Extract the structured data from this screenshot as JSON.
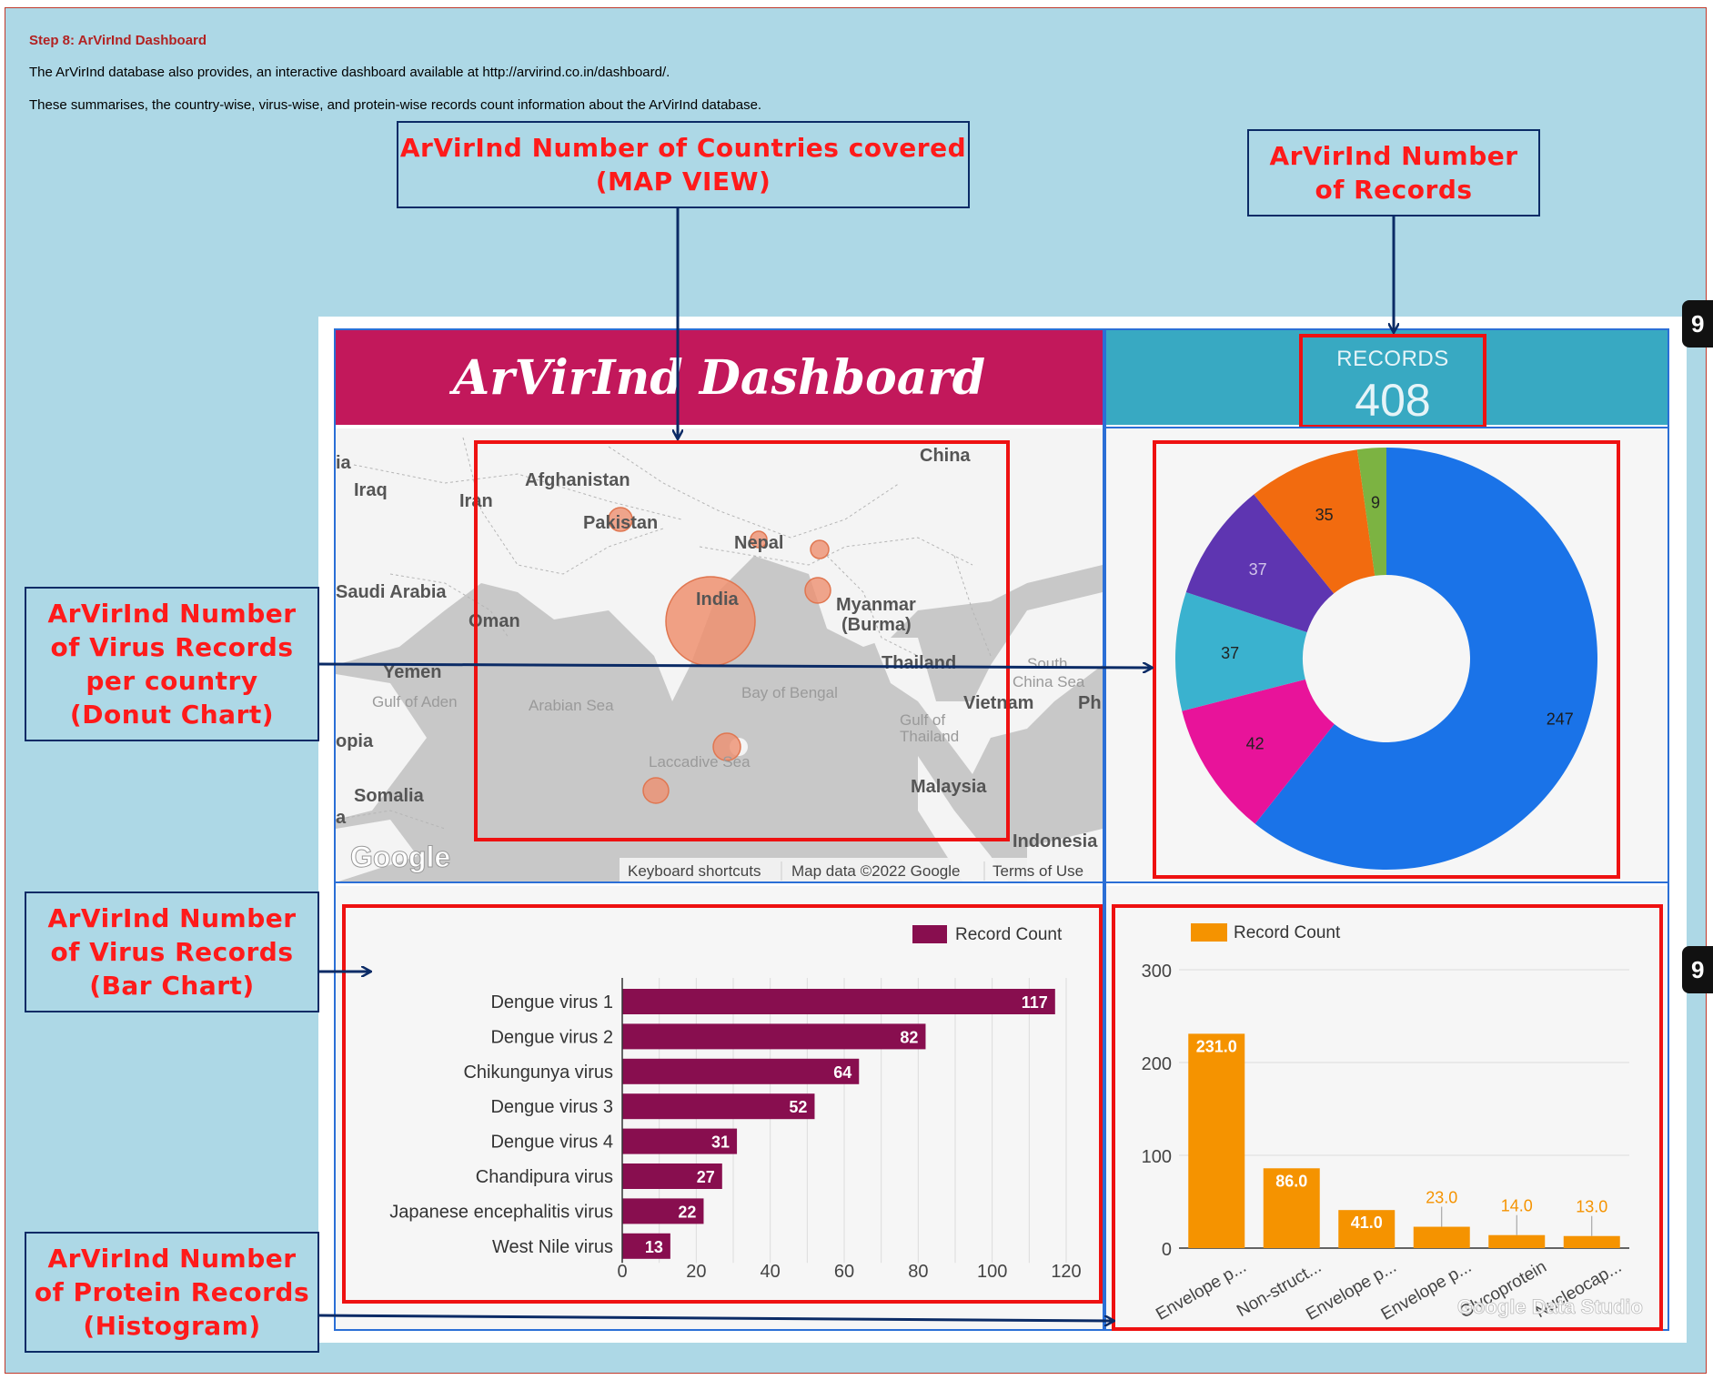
{
  "step_title": "Step 8: ArVirInd Dashboard",
  "paragraph1": "The ArVirInd database also provides, an interactive dashboard available at http://arvirind.co.in/dashboard/.",
  "paragraph2": "These summarises, the country-wise, virus-wise, and protein-wise records count information about the ArVirInd database.",
  "callouts": {
    "map": [
      "ArVirInd Number of  Countries covered",
      "(MAP VIEW)"
    ],
    "records": [
      "ArVirInd Number",
      "of Records"
    ],
    "donut": [
      "ArVirInd Number",
      "of Virus Records",
      "per country",
      "(Donut Chart)"
    ],
    "bar": [
      "ArVirInd Number",
      "of Virus Records",
      "(Bar Chart)"
    ],
    "histogram": [
      "ArVirInd Number",
      "of Protein Records",
      "(Histogram)"
    ]
  },
  "dashboard": {
    "title": "ArVirInd Dashboard",
    "records_label": "RECORDS",
    "records_value": "408"
  },
  "side_tab_glyph": "9",
  "map": {
    "labels": [
      "ia",
      "Iraq",
      "Iran",
      "Afghanistan",
      "Pakistan",
      "China",
      "Nepal",
      "Saudi Arabia",
      "Oman",
      "India",
      "Myanmar",
      "(Burma)",
      "Yemen",
      "Gulf of Aden",
      "Arabian Sea",
      "Bay of Bengal",
      "Thailand",
      "South",
      "China Sea",
      "Vietnam",
      "Ph",
      "Gulf of",
      "Thailand",
      "opia",
      "Laccadive Sea",
      "Somalia",
      "Malaysia",
      "a",
      "Indonesia"
    ],
    "logo": "Google",
    "footer": [
      "Keyboard shortcuts",
      "Map data ©2022 Google",
      "Terms of Use"
    ]
  },
  "chart_data": [
    {
      "type": "pie",
      "variant": "donut",
      "values": [
        247,
        42,
        37,
        37,
        35,
        9
      ],
      "labels": [
        "247",
        "42",
        "37",
        "37",
        "35",
        "9"
      ],
      "colors": [
        "#1a73e8",
        "#e8139a",
        "#3ab2cf",
        "#5e35b1",
        "#f26b0f",
        "#7cb342"
      ]
    },
    {
      "type": "bar",
      "orientation": "horizontal",
      "legend": "Record Count",
      "categories": [
        "Dengue virus 1",
        "Dengue virus 2",
        "Chikungunya virus",
        "Dengue virus 3",
        "Dengue virus 4",
        "Chandipura virus",
        "Japanese encephalitis virus",
        "West Nile virus"
      ],
      "values": [
        117,
        82,
        64,
        52,
        31,
        27,
        22,
        13
      ],
      "xlim": [
        0,
        120
      ],
      "ticks": [
        "0",
        "20",
        "40",
        "60",
        "80",
        "100",
        "120"
      ],
      "color": "#880e4f"
    },
    {
      "type": "bar",
      "legend": "Record Count",
      "categories": [
        "Envelope p...",
        "Non-struct...",
        "Envelope p...",
        "Envelope p...",
        "Glycoprotein",
        "Nucleocap..."
      ],
      "values": [
        231.0,
        86.0,
        41.0,
        23.0,
        14.0,
        13.0
      ],
      "value_labels": [
        "231.0",
        "86.0",
        "41.0",
        "23.0",
        "14.0",
        "13.0"
      ],
      "ylim": [
        0,
        300
      ],
      "ticks": [
        "0",
        "100",
        "200",
        "300"
      ],
      "color": "#f59300",
      "watermark": "Google Data Studio"
    }
  ]
}
